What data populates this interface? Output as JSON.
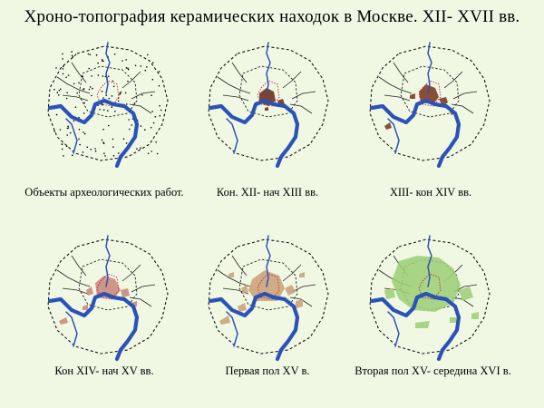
{
  "title": "Хроно-топография керамических находок в Москве. XII- XVII вв.",
  "panels": [
    {
      "caption": "Объекты археологических работ.",
      "layer": "dots",
      "color": "#000000"
    },
    {
      "caption": "Кон. XII- нач XIII вв.",
      "layer": "early",
      "color": "#6b2a18"
    },
    {
      "caption": "XIII- кон XIV вв.",
      "layer": "mid",
      "color": "#7a3520"
    },
    {
      "caption": "Кон XIV- нач XV вв.",
      "layer": "late14",
      "color": "#c9867a"
    },
    {
      "caption": "Первая пол XV в.",
      "layer": "xv",
      "color": "#c9a078"
    },
    {
      "caption": "Вторая пол XV- середина XVI в.",
      "layer": "xvi",
      "color": "#9ccf78"
    }
  ],
  "colors": {
    "background": "#f0f8e4",
    "river": "#2a52b8",
    "kremlin_outline": "#c0304a",
    "boundaries": "#111111"
  }
}
